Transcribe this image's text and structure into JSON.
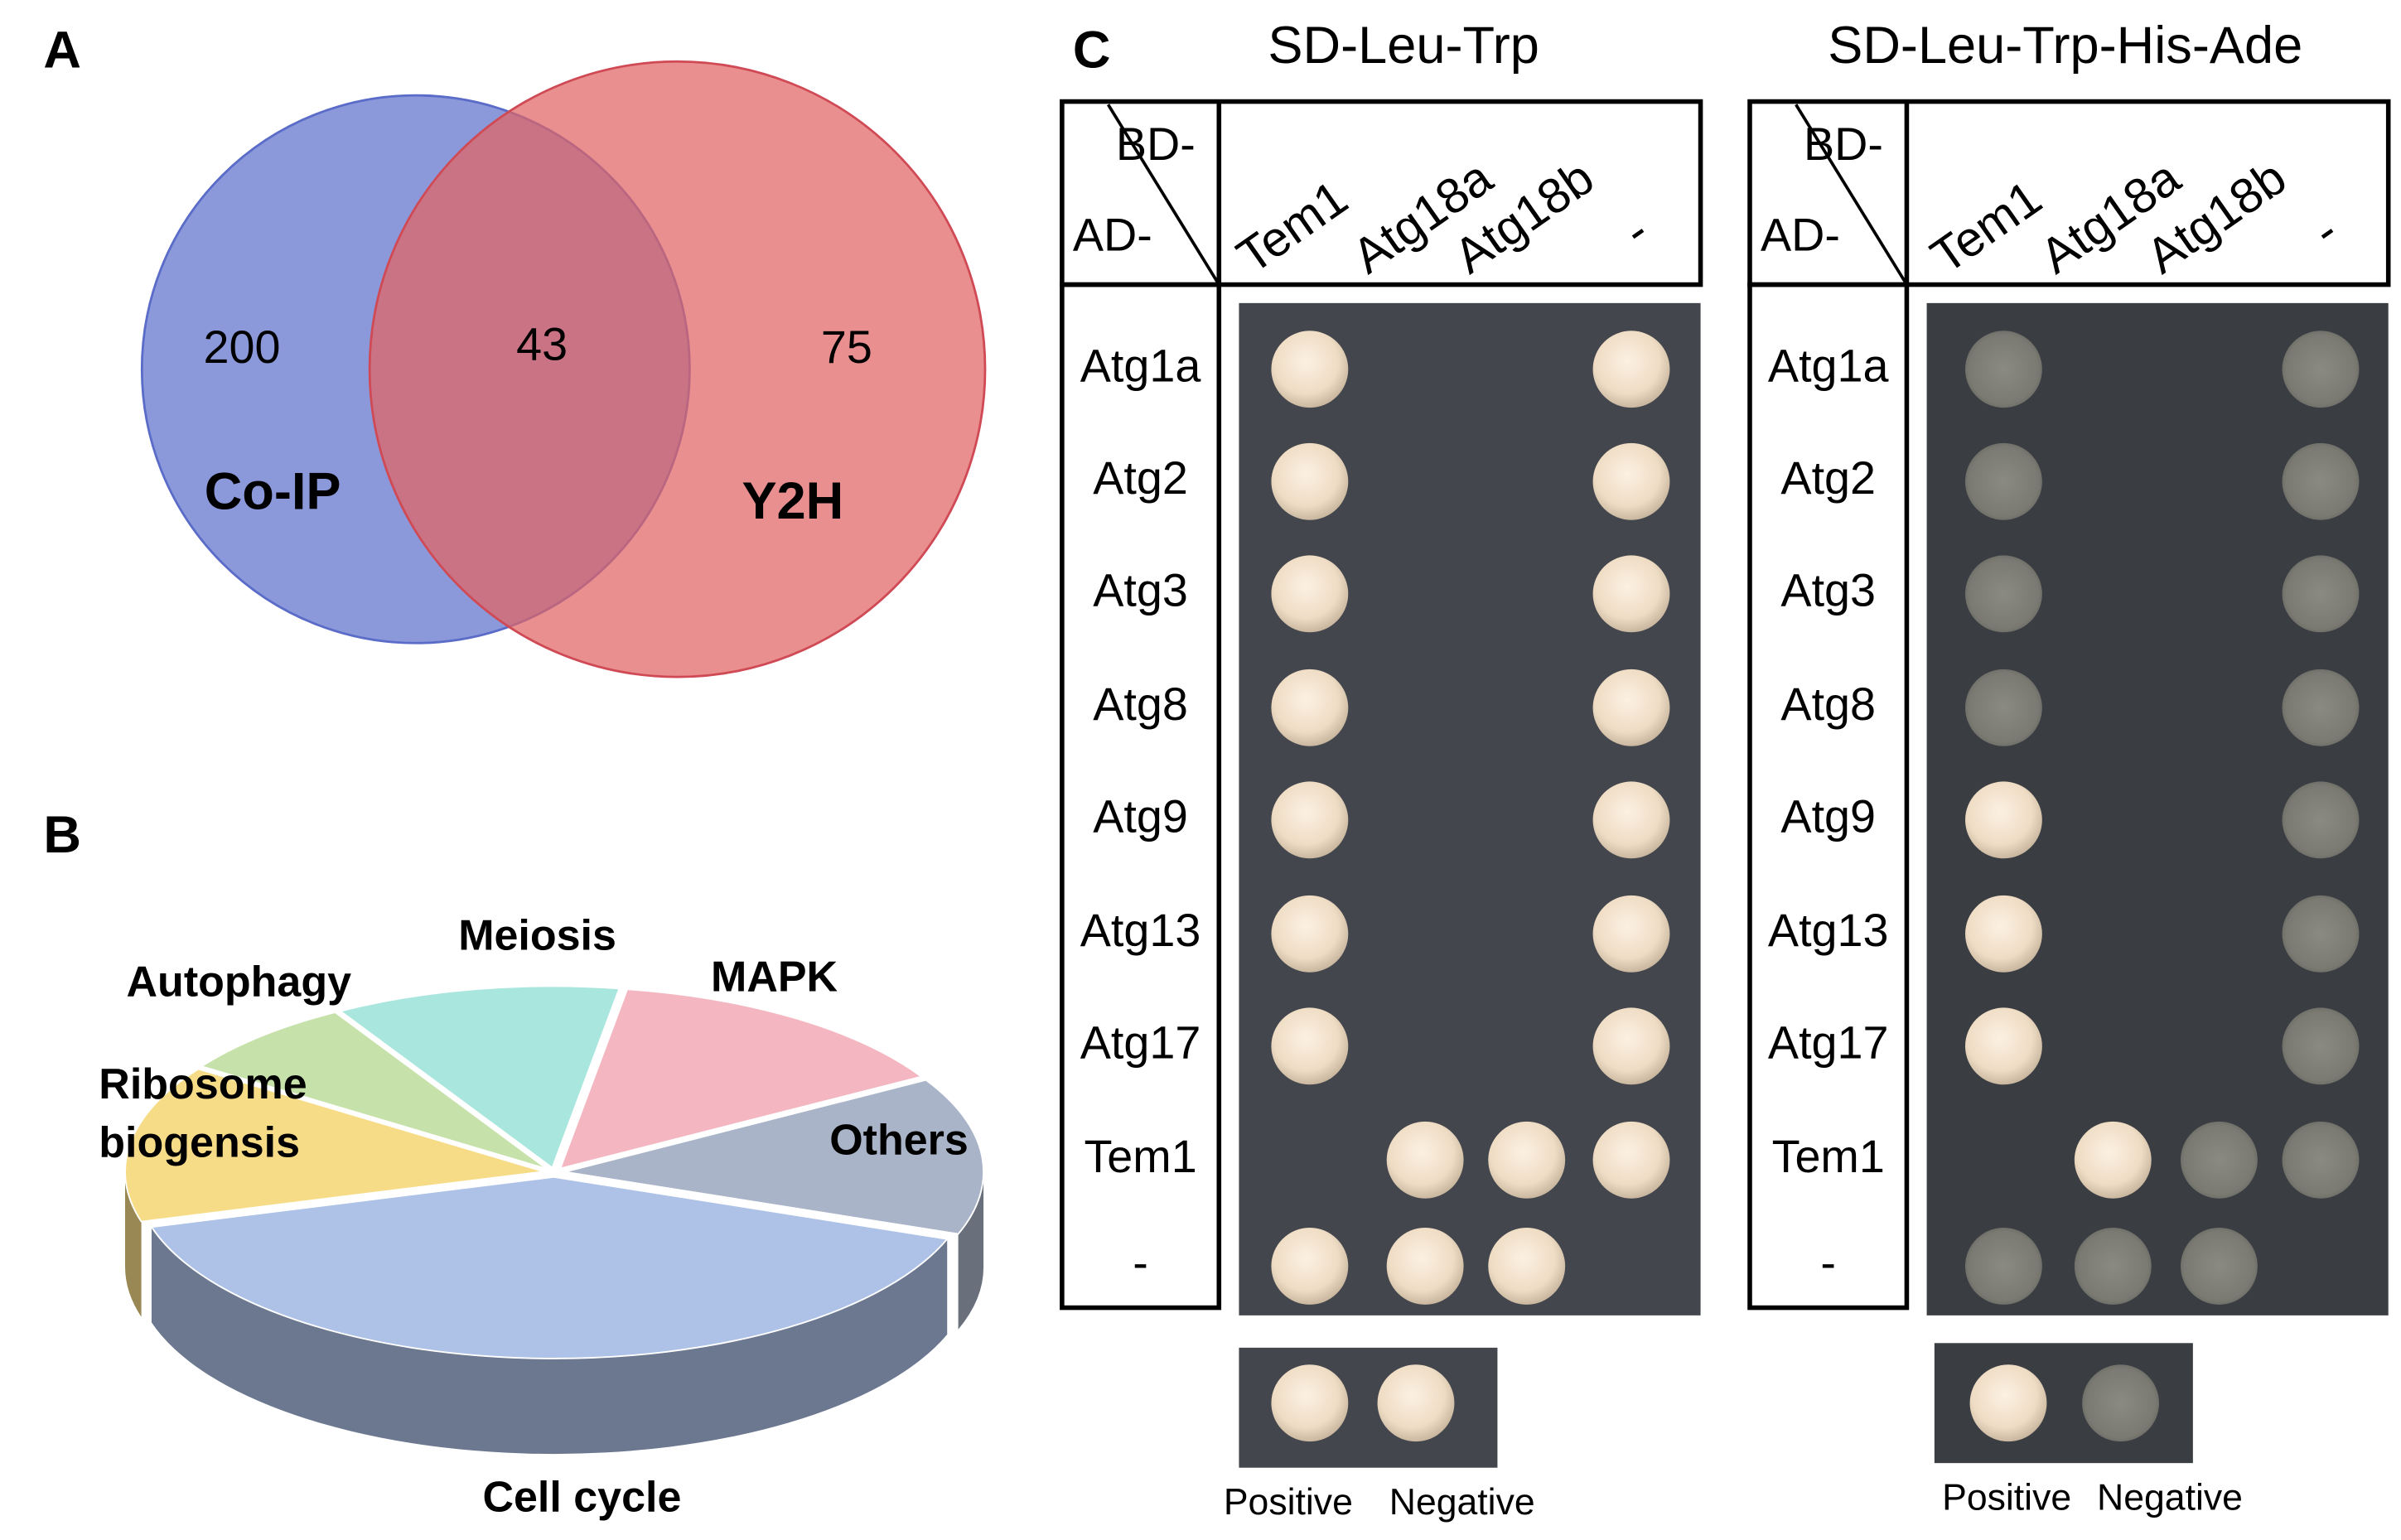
{
  "panel_a": {
    "label": "A",
    "sets": [
      {
        "name": "Co-IP",
        "count": 200
      },
      {
        "name": "Y2H",
        "count": 75
      }
    ],
    "overlap": 43
  },
  "panel_b": {
    "label": "B"
  },
  "chart_data": {
    "type": "pie",
    "categories": [
      "Cell cycle",
      "Ribosome biogensis",
      "Autophagy",
      "Meiosis",
      "MAPK",
      "Others"
    ],
    "values": [
      40,
      14,
      7,
      11,
      14,
      14
    ],
    "colors": [
      "#aec2e8",
      "#f7dc88",
      "#c6e2aa",
      "#a8e6de",
      "#f4b6c0",
      "#a9b4c8"
    ]
  },
  "panel_c": {
    "label": "C",
    "plates": [
      {
        "title": "SD-Leu-Trp",
        "column_header": "BD-",
        "row_header": "AD-",
        "columns": [
          "Tem1",
          "Atg18a",
          "Atg18b",
          "-"
        ],
        "rows": [
          "Atg1a",
          "Atg2",
          "Atg3",
          "Atg8",
          "Atg9",
          "Atg13",
          "Atg17",
          "Tem1",
          "-"
        ],
        "controls": [
          "Positive",
          "Negative"
        ]
      },
      {
        "title": "SD-Leu-Trp-His-Ade",
        "column_header": "BD-",
        "row_header": "AD-",
        "columns": [
          "Tem1",
          "Atg18a",
          "Atg18b",
          "-"
        ],
        "rows": [
          "Atg1a",
          "Atg2",
          "Atg3",
          "Atg8",
          "Atg9",
          "Atg13",
          "Atg17",
          "Tem1",
          "-"
        ],
        "controls": [
          "Positive",
          "Negative"
        ]
      }
    ]
  }
}
